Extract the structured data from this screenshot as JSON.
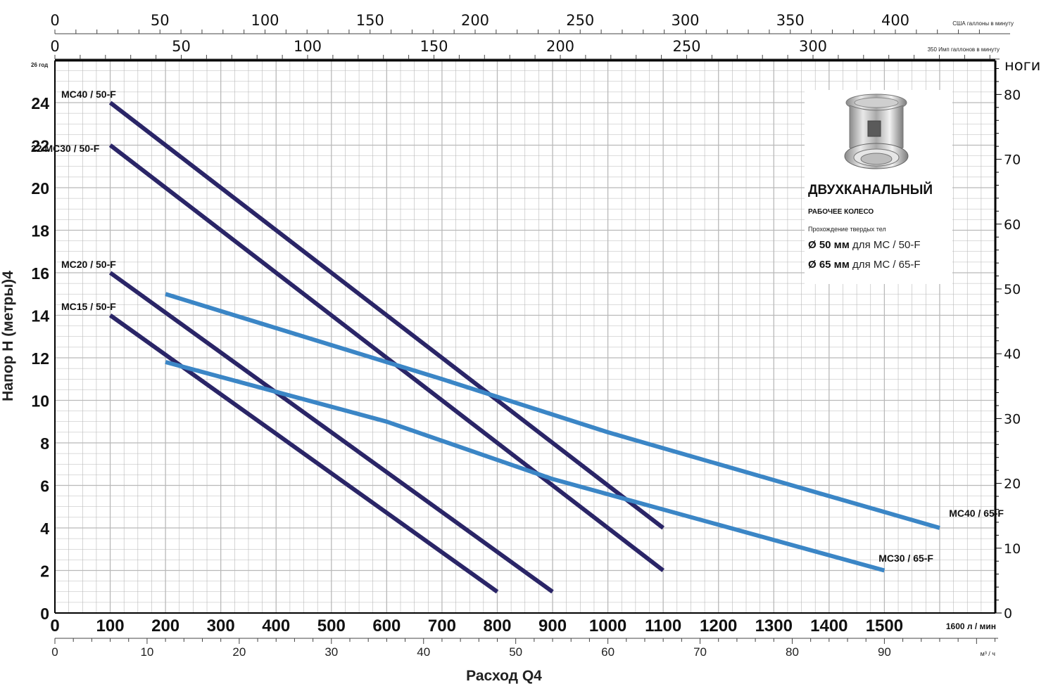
{
  "colors": {
    "dark_series": "#2a2567",
    "light_series": "#3b86c6",
    "grid": "#b9b9b9",
    "axis": "#000000"
  },
  "top_axis_us": {
    "ticks": [
      "0",
      "50",
      "100",
      "150",
      "200",
      "250",
      "300",
      "350",
      "400"
    ],
    "unit": "США галлоны в минуту"
  },
  "top_axis_imp": {
    "ticks": [
      "0",
      "50",
      "100",
      "150",
      "200",
      "250",
      "300"
    ],
    "unit": "350 Имп галлонов в минуту"
  },
  "left_axis": {
    "title": "Напор Н (метры)4",
    "ticks": [
      "0",
      "2",
      "4",
      "6",
      "8",
      "10",
      "12",
      "14",
      "16",
      "18",
      "20",
      "22",
      "24"
    ],
    "top_label": "26 год"
  },
  "right_axis": {
    "title": "ноги",
    "ticks": [
      "0",
      "10",
      "20",
      "30",
      "40",
      "50",
      "60",
      "70",
      "80"
    ]
  },
  "bottom_axis_lpm": {
    "ticks": [
      "0",
      "100",
      "200",
      "300",
      "400",
      "500",
      "600",
      "700",
      "800",
      "900",
      "1000",
      "1100",
      "1200",
      "1300",
      "1400",
      "1500"
    ],
    "unit": "1600 л / мин"
  },
  "bottom_axis_m3h": {
    "title": "Расход Q4",
    "ticks": [
      "0",
      "10",
      "20",
      "30",
      "40",
      "50",
      "60",
      "70",
      "80",
      "90"
    ],
    "unit": "м³ / ч"
  },
  "info_box": {
    "title": "ДВУХКАНАЛЬНЫЙ",
    "subtitle": "РАБОЧЕЕ КОЛЕСО",
    "note": "Прохождение твердых тел",
    "line1_bold": "Ø 50 мм",
    "line1_rest": " для МС / 50-F",
    "line2_bold": "Ø 65 мм",
    "line2_rest": " для МС / 65-F"
  },
  "chart_data": {
    "type": "line",
    "xlabel": "Расход Q4",
    "ylabel": "Напор Н (метры)4",
    "xlim": [
      0,
      1600
    ],
    "ylim": [
      0,
      26
    ],
    "grid": true,
    "series": [
      {
        "name": "MC40 / 50-F",
        "color": "#2a2567",
        "x": [
          100,
          1100
        ],
        "y": [
          24,
          4
        ]
      },
      {
        "name": "MC30 / 50-F",
        "color": "#2a2567",
        "x": [
          100,
          1100
        ],
        "y": [
          22,
          2
        ]
      },
      {
        "name": "MC20 / 50-F",
        "color": "#2a2567",
        "x": [
          100,
          900
        ],
        "y": [
          16,
          1
        ]
      },
      {
        "name": "MC15 / 50-F",
        "color": "#2a2567",
        "x": [
          100,
          800
        ],
        "y": [
          14,
          1
        ]
      },
      {
        "name": "MC40 / 65-F",
        "color": "#3b86c6",
        "x": [
          200,
          700,
          1000,
          1600
        ],
        "y": [
          15,
          11,
          8.5,
          4
        ]
      },
      {
        "name": "MC30 / 65-F",
        "color": "#3b86c6",
        "x": [
          200,
          600,
          900,
          1500
        ],
        "y": [
          11.8,
          9,
          6.3,
          2
        ]
      }
    ],
    "curve_labels": [
      "MC40 / 50-F",
      "22 MC30 / 50-F",
      "MC20 / 50-F",
      "MC15 / 50-F",
      "MC40 / 65-F",
      "MC30 / 65-F"
    ]
  }
}
